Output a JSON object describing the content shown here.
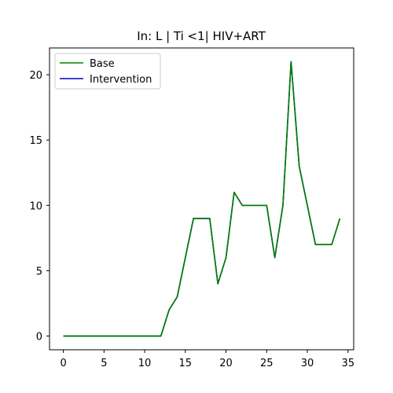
{
  "chart_data": {
    "type": "line",
    "title": "In: L | Ti <1| HIV+ART",
    "xlabel": "",
    "ylabel": "",
    "xlim": [
      -1.7,
      35.7
    ],
    "ylim": [
      -1.05,
      22.05
    ],
    "xticks": [
      0,
      5,
      10,
      15,
      20,
      25,
      30,
      35
    ],
    "yticks": [
      0,
      5,
      10,
      15,
      20
    ],
    "grid": false,
    "legend_position": "top-left",
    "x": [
      0,
      1,
      2,
      3,
      4,
      5,
      6,
      7,
      8,
      9,
      10,
      11,
      12,
      13,
      14,
      15,
      16,
      17,
      18,
      19,
      20,
      21,
      22,
      23,
      24,
      25,
      26,
      27,
      28,
      29,
      30,
      31,
      32,
      33,
      34
    ],
    "series": [
      {
        "name": "Base",
        "color": "#008000",
        "values": [
          0,
          0,
          0,
          0,
          0,
          0,
          0,
          0,
          0,
          0,
          0,
          0,
          0,
          2,
          3,
          6,
          9,
          9,
          9,
          4,
          6,
          11,
          10,
          10,
          10,
          10,
          6,
          10,
          21,
          13,
          10,
          7,
          7,
          7,
          9
        ]
      },
      {
        "name": "Intervention",
        "color": "#0000cc",
        "values": [
          0,
          0,
          0,
          0,
          0,
          0,
          0,
          0,
          0,
          0,
          0,
          0,
          0,
          2,
          3,
          6,
          9,
          9,
          9,
          4,
          6,
          11,
          10,
          10,
          10,
          10,
          6,
          10,
          21,
          13,
          10,
          7,
          7,
          7,
          9
        ]
      }
    ]
  }
}
